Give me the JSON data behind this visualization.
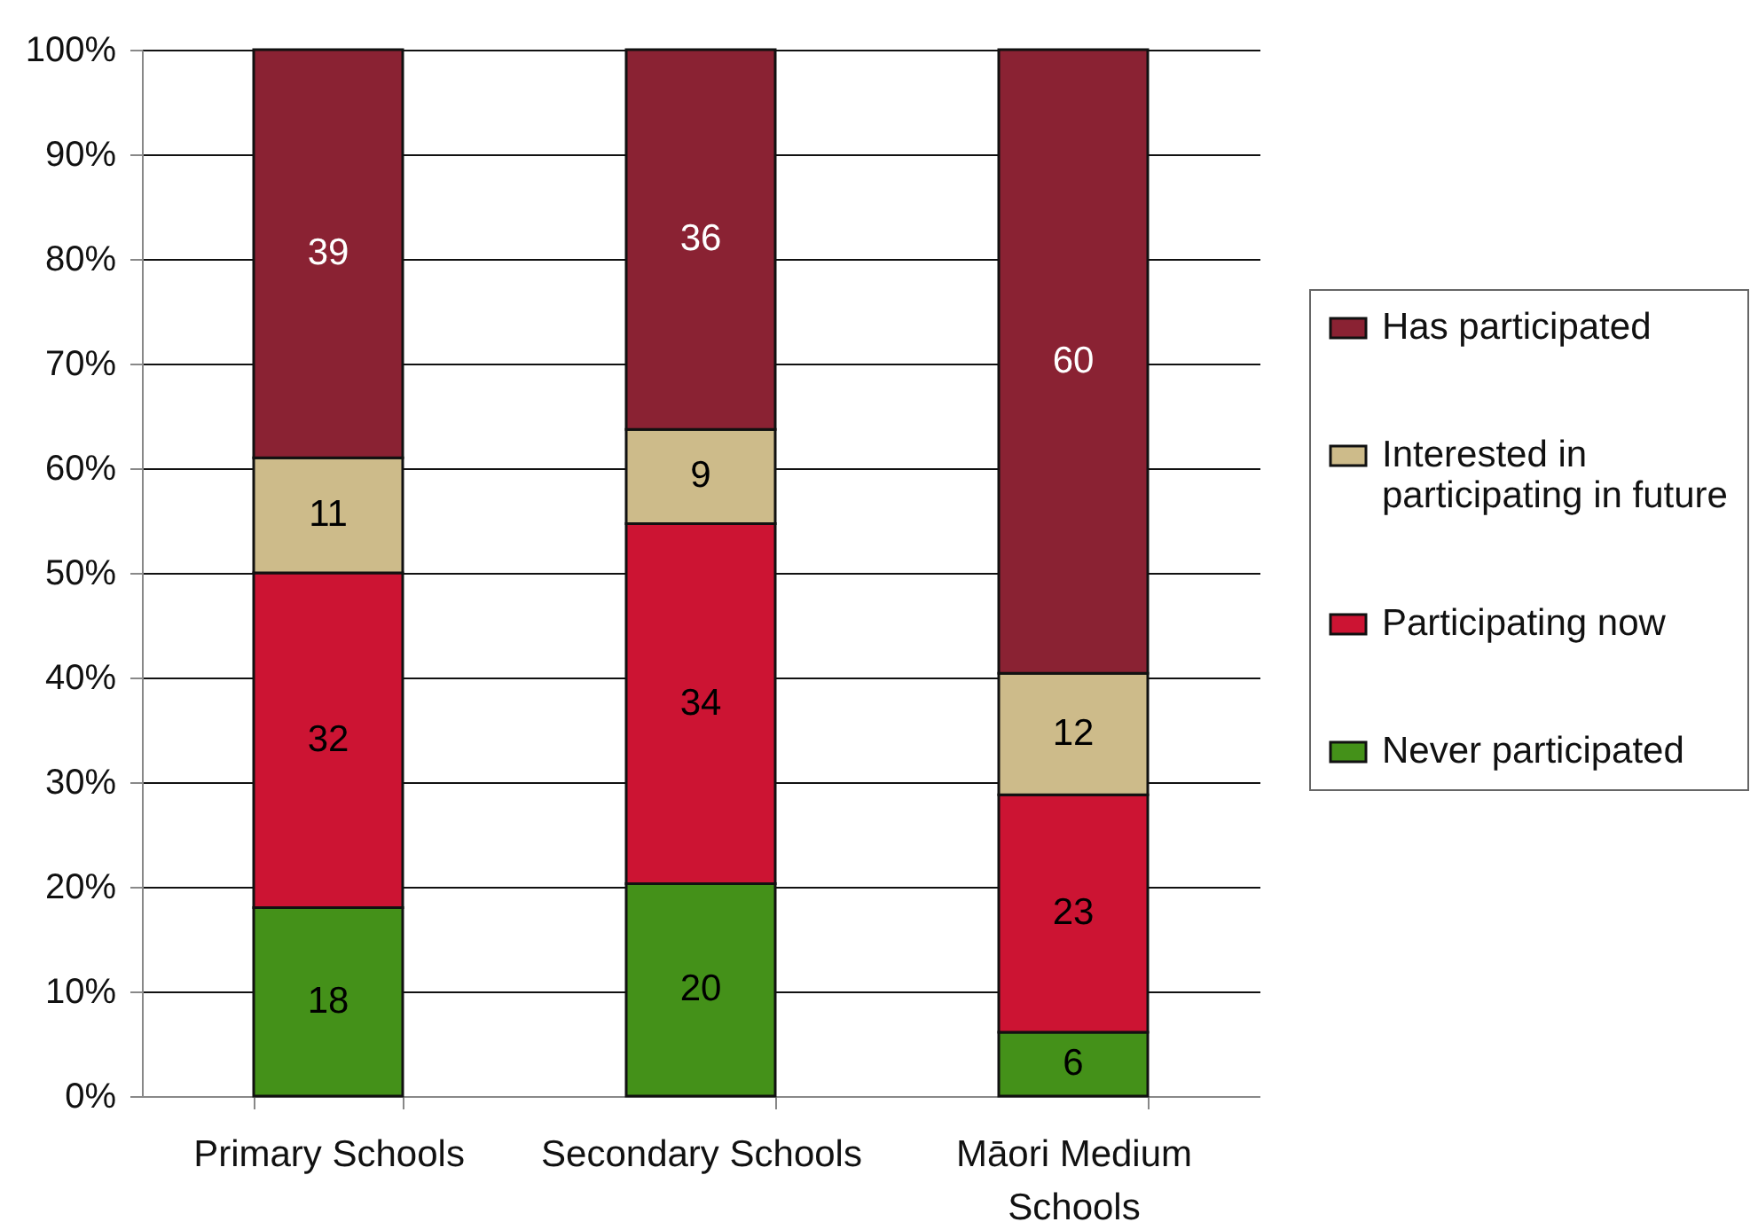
{
  "chart_data": {
    "type": "bar",
    "stacked": true,
    "categories": [
      "Primary Schools",
      "Secondary Schools",
      "Māori Medium Schools"
    ],
    "series": [
      {
        "name": "Never participated",
        "color": "#449119",
        "values": [
          18,
          20.3,
          6.1
        ],
        "value_labels": [
          "18",
          "20",
          "6"
        ]
      },
      {
        "name": "Participating now",
        "color": "#cc1433",
        "values": [
          32,
          34.4,
          22.7
        ],
        "value_labels": [
          "32",
          "34",
          "23"
        ]
      },
      {
        "name": "Interested in participating in future",
        "color": "#cdbb8a",
        "values": [
          11,
          9,
          11.6
        ],
        "value_labels": [
          "11",
          "9",
          "12"
        ]
      },
      {
        "name": "Has participated",
        "color": "#8a2233",
        "values": [
          39,
          36.3,
          59.6
        ],
        "value_labels": [
          "39",
          "36",
          "60"
        ]
      }
    ],
    "ylim": [
      0,
      100
    ],
    "yticks": [
      {
        "value": 0,
        "label": "0%"
      },
      {
        "value": 10,
        "label": "10%"
      },
      {
        "value": 20,
        "label": "20%"
      },
      {
        "value": 30,
        "label": "30%"
      },
      {
        "value": 40,
        "label": "40%"
      },
      {
        "value": 50,
        "label": "50%"
      },
      {
        "value": 60,
        "label": "60%"
      },
      {
        "value": 70,
        "label": "70%"
      },
      {
        "value": 80,
        "label": "80%"
      },
      {
        "value": 90,
        "label": "90%"
      },
      {
        "value": 100,
        "label": "100%"
      }
    ],
    "grid": "y",
    "legend": "right"
  }
}
